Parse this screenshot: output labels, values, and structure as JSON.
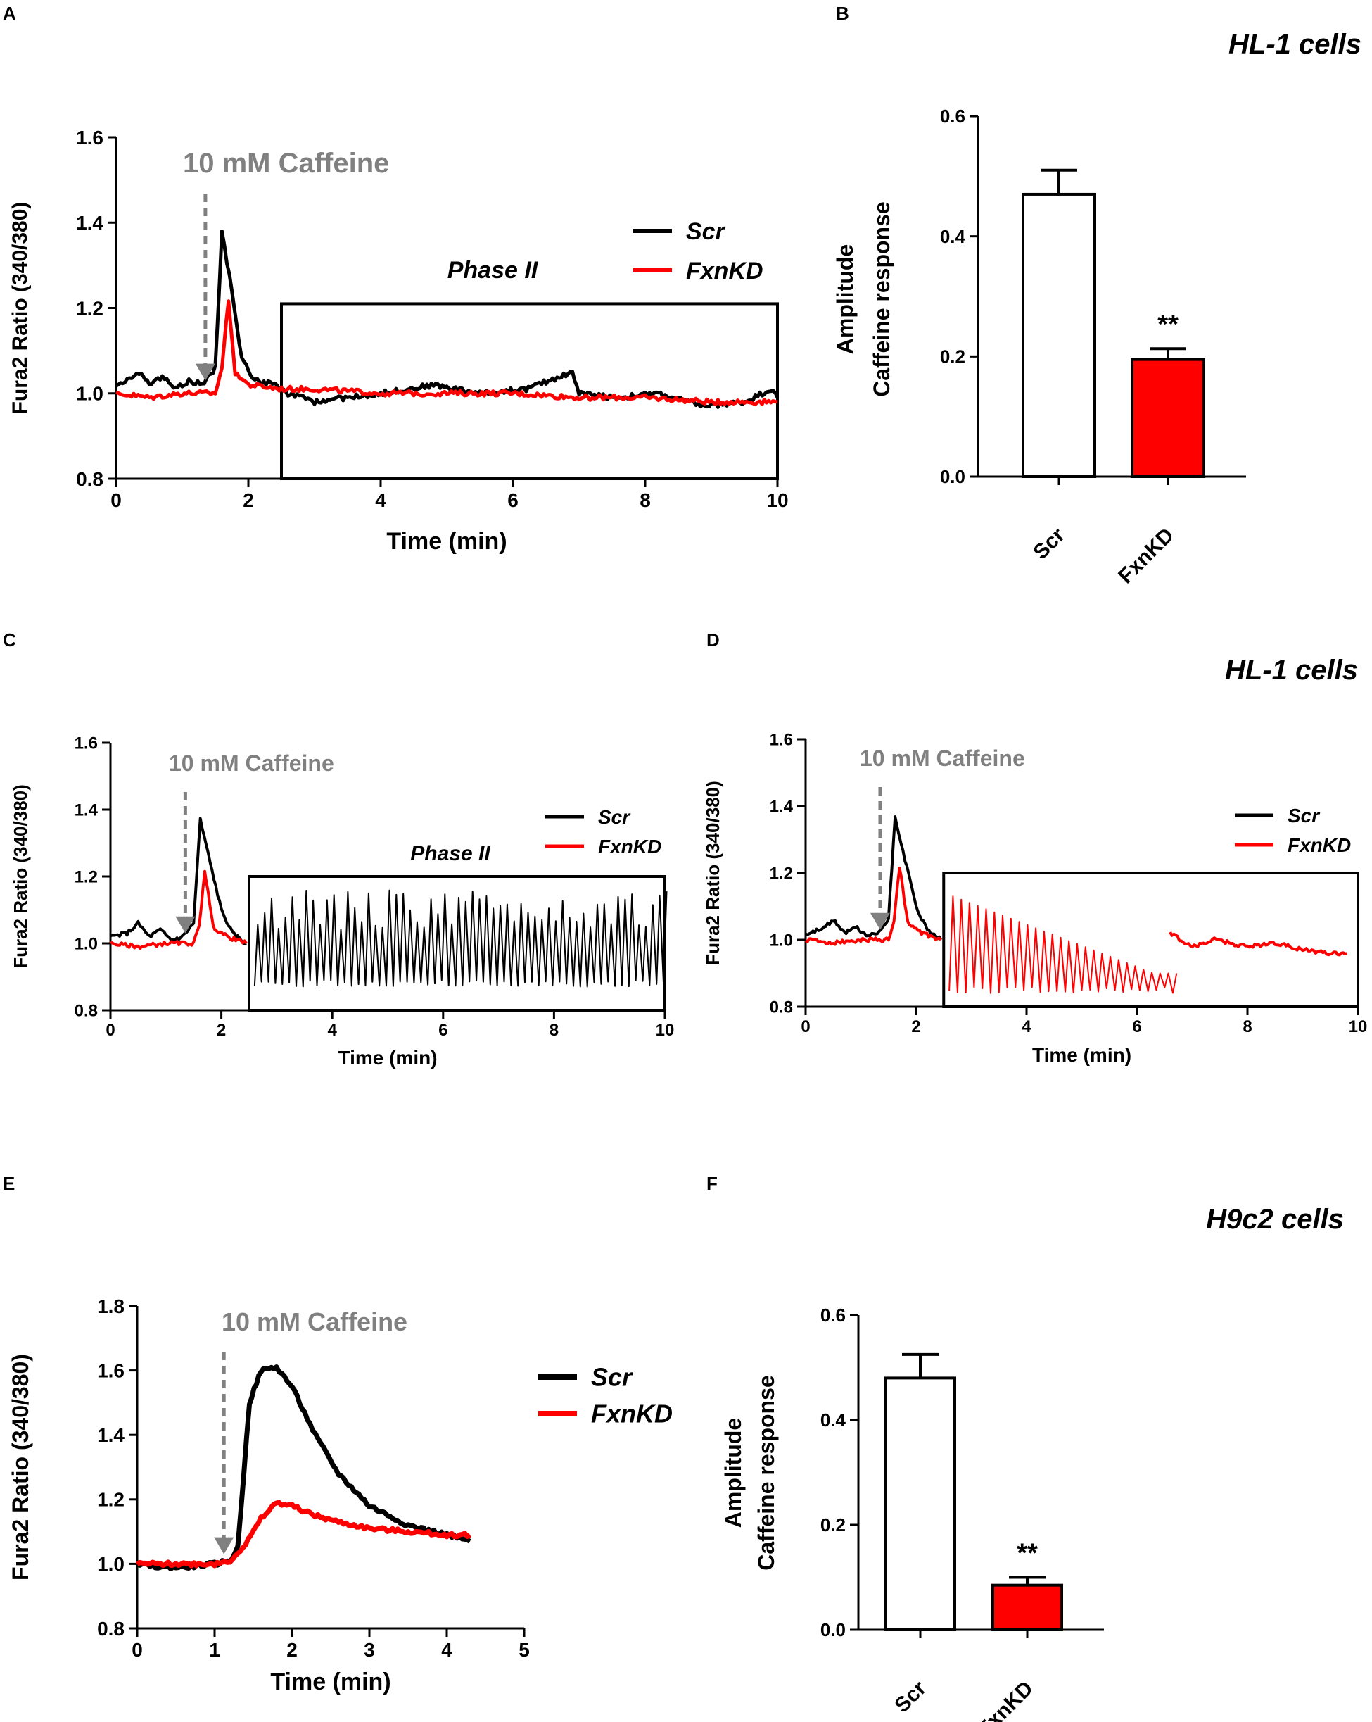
{
  "figure": {
    "panel_labels": [
      "A",
      "B",
      "C",
      "D",
      "E",
      "F"
    ],
    "cell_titles": {
      "B": "HL-1 cells",
      "D": "HL-1 cells",
      "F": "H9c2 cells"
    },
    "colors": {
      "scr": "#000000",
      "fxnkd": "#ff0000",
      "annotation": "#808080"
    }
  },
  "chart_data": [
    {
      "panel": "A",
      "type": "line",
      "title": "",
      "annotation": "10 mM Caffeine",
      "phase_label": "Phase II",
      "xlabel": "Time (min)",
      "ylabel": "Fura2 Ratio (340/380)",
      "xlim": [
        0,
        10
      ],
      "ylim": [
        0.8,
        1.6
      ],
      "xticks": [
        "0",
        "2",
        "4",
        "6",
        "8",
        "10"
      ],
      "yticks": [
        "0.8",
        "1.0",
        "1.2",
        "1.4",
        "1.6"
      ],
      "caffeine_time": 1.35,
      "phase_box": [
        2.5,
        10,
        0.8,
        1.21
      ],
      "legend": [
        "Scr",
        "FxnKD"
      ],
      "series": [
        {
          "name": "Scr",
          "pattern": "baseline",
          "color": "#000000",
          "keypoints": [
            [
              0,
              1.02
            ],
            [
              0.2,
              1.03
            ],
            [
              0.35,
              1.05
            ],
            [
              0.5,
              1.02
            ],
            [
              0.7,
              1.04
            ],
            [
              0.9,
              1.01
            ],
            [
              1.1,
              1.03
            ],
            [
              1.3,
              1.02
            ],
            [
              1.5,
              1.06
            ],
            [
              1.6,
              1.38
            ],
            [
              1.75,
              1.24
            ],
            [
              1.9,
              1.08
            ],
            [
              2.1,
              1.03
            ],
            [
              2.4,
              1.02
            ],
            [
              2.6,
              1.0
            ],
            [
              3.0,
              0.98
            ],
            [
              3.5,
              0.99
            ],
            [
              4.0,
              1.0
            ],
            [
              4.8,
              1.02
            ],
            [
              5.5,
              1.0
            ],
            [
              6.2,
              1.01
            ],
            [
              6.9,
              1.05
            ],
            [
              7.0,
              1.0
            ],
            [
              7.6,
              0.99
            ],
            [
              8.2,
              1.0
            ],
            [
              8.9,
              0.97
            ],
            [
              9.5,
              0.98
            ],
            [
              9.9,
              1.01
            ],
            [
              10,
              0.99
            ]
          ]
        },
        {
          "name": "FxnKD",
          "pattern": "baseline",
          "color": "#ff0000",
          "keypoints": [
            [
              0,
              1.0
            ],
            [
              0.5,
              0.99
            ],
            [
              1.0,
              1.0
            ],
            [
              1.5,
              1.0
            ],
            [
              1.6,
              1.06
            ],
            [
              1.7,
              1.22
            ],
            [
              1.8,
              1.05
            ],
            [
              2.0,
              1.02
            ],
            [
              2.5,
              1.01
            ],
            [
              3,
              1.01
            ],
            [
              4,
              1.0
            ],
            [
              5,
              1.0
            ],
            [
              6,
              1.0
            ],
            [
              7,
              0.99
            ],
            [
              8,
              0.99
            ],
            [
              9,
              0.98
            ],
            [
              10,
              0.98
            ]
          ]
        }
      ]
    },
    {
      "panel": "B",
      "type": "bar",
      "title": "HL-1 cells",
      "categories": [
        "Scr",
        "FxnKD"
      ],
      "values": [
        0.47,
        0.195
      ],
      "errors": [
        0.04,
        0.018
      ],
      "significance": [
        "",
        "**"
      ],
      "ylabel": [
        "Amplitude",
        "Caffeine response"
      ],
      "ylim": [
        0,
        0.6
      ],
      "yticks": [
        "0.0",
        "0.2",
        "0.4",
        "0.6"
      ]
    },
    {
      "panel": "C",
      "type": "line",
      "annotation": "10 mM Caffeine",
      "phase_label": "Phase II",
      "xlabel": "Time (min)",
      "ylabel": "Fura2 Ratio (340/380)",
      "xlim": [
        0,
        10
      ],
      "ylim": [
        0.8,
        1.6
      ],
      "xticks": [
        "0",
        "2",
        "4",
        "6",
        "8",
        "10"
      ],
      "yticks": [
        "0.8",
        "1.0",
        "1.2",
        "1.4",
        "1.6"
      ],
      "caffeine_time": 1.35,
      "phase_box": [
        2.5,
        10,
        0.8,
        1.2
      ],
      "legend": [
        "Scr",
        "FxnKD"
      ],
      "series": [
        {
          "name": "Scr",
          "pattern": "baseline",
          "color": "#000000",
          "keypoints": [
            [
              0,
              1.02
            ],
            [
              0.3,
              1.03
            ],
            [
              0.5,
              1.06
            ],
            [
              0.7,
              1.02
            ],
            [
              0.9,
              1.04
            ],
            [
              1.1,
              1.01
            ],
            [
              1.3,
              1.02
            ],
            [
              1.5,
              1.06
            ],
            [
              1.62,
              1.37
            ],
            [
              1.8,
              1.24
            ],
            [
              2.0,
              1.1
            ],
            [
              2.2,
              1.03
            ],
            [
              2.45,
              1.0
            ]
          ]
        },
        {
          "name": "FxnKD",
          "pattern": "baseline",
          "color": "#ff0000",
          "keypoints": [
            [
              0,
              1.0
            ],
            [
              0.5,
              0.99
            ],
            [
              1.0,
              1.0
            ],
            [
              1.5,
              1.0
            ],
            [
              1.6,
              1.05
            ],
            [
              1.7,
              1.22
            ],
            [
              1.85,
              1.05
            ],
            [
              2.1,
              1.02
            ],
            [
              2.45,
              1.0
            ]
          ]
        },
        {
          "name": "Scr",
          "pattern": "oscillation",
          "color": "#000000",
          "t_start": 2.6,
          "t_end": 9.95,
          "period": 0.125,
          "baseline": 0.88,
          "amp_min": 0.16,
          "amp_max": 0.28
        }
      ]
    },
    {
      "panel": "D",
      "type": "line",
      "title": "HL-1 cells",
      "annotation": "10 mM Caffeine",
      "xlabel": "Time (min)",
      "ylabel": "Fura2 Ratio (340/380)",
      "xlim": [
        0,
        10
      ],
      "ylim": [
        0.8,
        1.6
      ],
      "xticks": [
        "0",
        "2",
        "4",
        "6",
        "8",
        "10"
      ],
      "yticks": [
        "0.8",
        "1.0",
        "1.2",
        "1.4",
        "1.6"
      ],
      "caffeine_time": 1.35,
      "phase_box": [
        2.5,
        10,
        0.8,
        1.2
      ],
      "legend": [
        "Scr",
        "FxnKD"
      ],
      "series": [
        {
          "name": "Scr",
          "pattern": "baseline",
          "color": "#000000",
          "keypoints": [
            [
              0,
              1.02
            ],
            [
              0.3,
              1.03
            ],
            [
              0.5,
              1.06
            ],
            [
              0.7,
              1.02
            ],
            [
              0.9,
              1.04
            ],
            [
              1.1,
              1.01
            ],
            [
              1.3,
              1.02
            ],
            [
              1.5,
              1.06
            ],
            [
              1.62,
              1.37
            ],
            [
              1.8,
              1.24
            ],
            [
              2.0,
              1.1
            ],
            [
              2.2,
              1.03
            ],
            [
              2.45,
              1.0
            ]
          ]
        },
        {
          "name": "FxnKD",
          "pattern": "baseline",
          "color": "#ff0000",
          "keypoints": [
            [
              0,
              1.0
            ],
            [
              0.5,
              0.99
            ],
            [
              1.0,
              1.0
            ],
            [
              1.5,
              1.0
            ],
            [
              1.6,
              1.05
            ],
            [
              1.7,
              1.22
            ],
            [
              1.85,
              1.05
            ],
            [
              2.1,
              1.02
            ],
            [
              2.45,
              1.0
            ]
          ]
        },
        {
          "name": "FxnKD",
          "pattern": "damped",
          "color": "#ff0000",
          "t_start": 2.6,
          "t_end": 6.6,
          "period": 0.15,
          "baseline": 0.85,
          "amp_min": 0.12,
          "amp_max": 0.28
        },
        {
          "name": "FxnKD",
          "pattern": "baseline",
          "color": "#ff0000",
          "keypoints": [
            [
              6.6,
              1.02
            ],
            [
              7.0,
              0.98
            ],
            [
              7.4,
              1.0
            ],
            [
              8.0,
              0.98
            ],
            [
              8.5,
              0.99
            ],
            [
              9.0,
              0.97
            ],
            [
              9.5,
              0.96
            ],
            [
              9.8,
              0.96
            ]
          ]
        }
      ]
    },
    {
      "panel": "E",
      "type": "line",
      "annotation": "10 mM Caffeine",
      "xlabel": "Time (min)",
      "ylabel": "Fura2 Ratio (340/380)",
      "xlim": [
        0,
        5
      ],
      "ylim": [
        0.8,
        1.8
      ],
      "xticks": [
        "0",
        "1",
        "2",
        "3",
        "4",
        "5"
      ],
      "yticks": [
        "0.8",
        "1.0",
        "1.2",
        "1.4",
        "1.6",
        "1.8"
      ],
      "caffeine_time": 1.12,
      "legend": [
        "Scr",
        "FxnKD"
      ],
      "series": [
        {
          "name": "Scr",
          "pattern": "baseline",
          "color": "#000000",
          "keypoints": [
            [
              0,
              1.0
            ],
            [
              0.3,
              0.99
            ],
            [
              0.6,
              0.99
            ],
            [
              1.0,
              1.0
            ],
            [
              1.2,
              1.01
            ],
            [
              1.3,
              1.05
            ],
            [
              1.45,
              1.5
            ],
            [
              1.6,
              1.6
            ],
            [
              1.8,
              1.61
            ],
            [
              2.0,
              1.55
            ],
            [
              2.3,
              1.4
            ],
            [
              2.6,
              1.28
            ],
            [
              3.0,
              1.18
            ],
            [
              3.5,
              1.12
            ],
            [
              4.0,
              1.09
            ],
            [
              4.3,
              1.07
            ]
          ]
        },
        {
          "name": "FxnKD",
          "pattern": "baseline",
          "color": "#ff0000",
          "keypoints": [
            [
              0,
              1.0
            ],
            [
              0.5,
              1.0
            ],
            [
              1.0,
              1.0
            ],
            [
              1.2,
              1.01
            ],
            [
              1.4,
              1.06
            ],
            [
              1.6,
              1.14
            ],
            [
              1.8,
              1.19
            ],
            [
              2.0,
              1.18
            ],
            [
              2.3,
              1.15
            ],
            [
              2.6,
              1.13
            ],
            [
              3.0,
              1.11
            ],
            [
              3.5,
              1.1
            ],
            [
              4.0,
              1.09
            ],
            [
              4.3,
              1.09
            ]
          ]
        }
      ]
    },
    {
      "panel": "F",
      "type": "bar",
      "title": "H9c2 cells",
      "categories": [
        "Scr",
        "FxnKD"
      ],
      "values": [
        0.48,
        0.085
      ],
      "errors": [
        0.045,
        0.015
      ],
      "significance": [
        "",
        "**"
      ],
      "ylabel": [
        "Amplitude",
        "Caffeine response"
      ],
      "ylim": [
        0,
        0.6
      ],
      "yticks": [
        "0.0",
        "0.2",
        "0.4",
        "0.6"
      ]
    }
  ]
}
